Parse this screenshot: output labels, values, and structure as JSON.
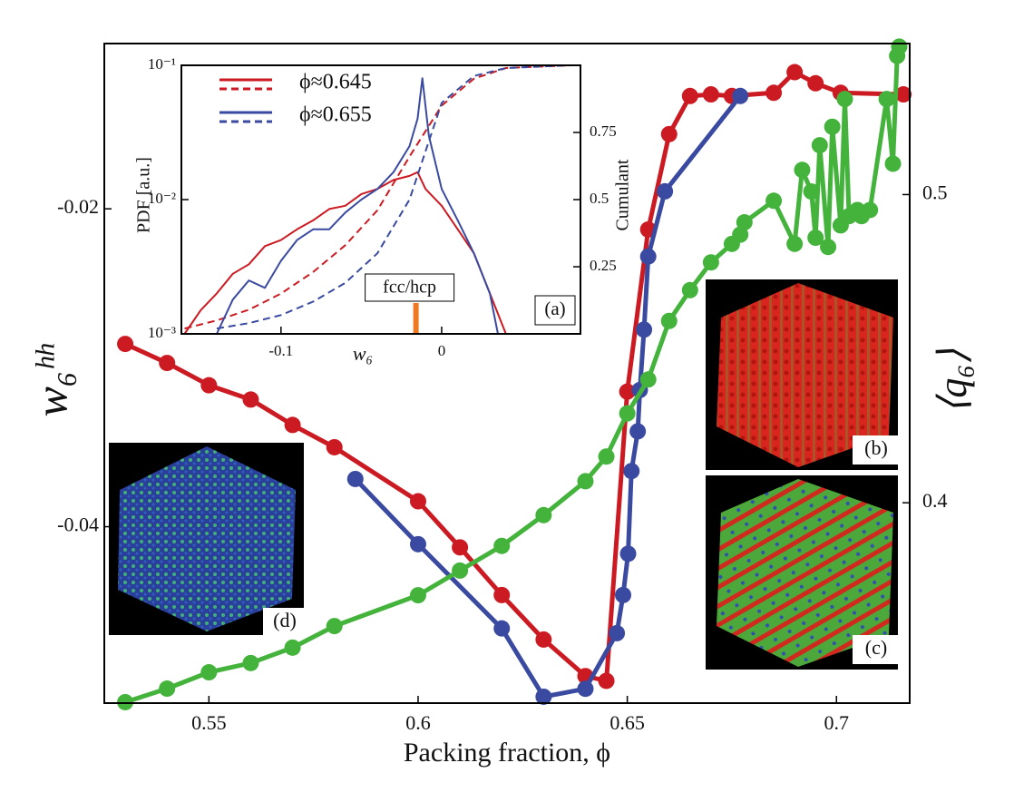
{
  "chart_data": [
    {
      "type": "line",
      "xlabel": "Packing fraction, ϕ",
      "ylabel": "w₆ʰʰ",
      "y2label": "⟨q₆⟩",
      "xlim": [
        0.525,
        0.7175
      ],
      "xticks": [
        0.55,
        0.6,
        0.65,
        0.7
      ],
      "ylim": [
        -0.0511,
        -0.0096
      ],
      "yticks": [
        -0.04,
        -0.02
      ],
      "y2lim": [
        0.335,
        0.549
      ],
      "y2ticks": [
        0.4,
        0.5
      ],
      "markers": true,
      "series": [
        {
          "color": "#cc1a22",
          "axis": "y",
          "x": [
            0.53,
            0.54,
            0.55,
            0.56,
            0.57,
            0.58,
            0.6,
            0.61,
            0.62,
            0.63,
            0.64,
            0.645,
            0.65,
            0.655,
            0.66,
            0.665,
            0.67,
            0.675,
            0.685,
            0.69,
            0.695,
            0.701,
            0.716
          ],
          "values": [
            -0.0285,
            -0.0297,
            -0.0311,
            -0.032,
            -0.0336,
            -0.035,
            -0.0384,
            -0.0413,
            -0.0443,
            -0.0471,
            -0.0494,
            -0.0497,
            -0.0315,
            -0.0213,
            -0.0153,
            -0.0129,
            -0.0128,
            -0.0129,
            -0.0127,
            -0.0114,
            -0.0121,
            -0.0127,
            -0.0128
          ]
        },
        {
          "color": "#3a4aa0",
          "axis": "y",
          "x": [
            0.585,
            0.6,
            0.62,
            0.63,
            0.64,
            0.6475,
            0.649,
            0.6502,
            0.651,
            0.6525,
            0.653,
            0.654,
            0.655,
            0.659,
            0.677
          ],
          "values": [
            -0.037,
            -0.0411,
            -0.0464,
            -0.0507,
            -0.0502,
            -0.0467,
            -0.0443,
            -0.0417,
            -0.0365,
            -0.034,
            -0.0314,
            -0.0276,
            -0.023,
            -0.0189,
            -0.0129
          ]
        },
        {
          "color": "#44b33c",
          "axis": "y2",
          "x": [
            0.53,
            0.54,
            0.55,
            0.56,
            0.57,
            0.58,
            0.6,
            0.61,
            0.62,
            0.63,
            0.64,
            0.645,
            0.65,
            0.655,
            0.66,
            0.665,
            0.67,
            0.675,
            0.677,
            0.678,
            0.685,
            0.69,
            0.6918,
            0.694,
            0.695,
            0.696,
            0.698,
            0.699,
            0.701,
            0.702,
            0.703,
            0.705,
            0.706,
            0.708,
            0.712,
            0.7135,
            0.7145,
            0.715
          ],
          "values": [
            0.3353,
            0.3397,
            0.345,
            0.348,
            0.353,
            0.36,
            0.37,
            0.378,
            0.386,
            0.396,
            0.407,
            0.415,
            0.429,
            0.44,
            0.459,
            0.469,
            0.478,
            0.484,
            0.487,
            0.491,
            0.498,
            0.484,
            0.508,
            0.501,
            0.486,
            0.516,
            0.483,
            0.522,
            0.49,
            0.531,
            0.493,
            0.495,
            0.493,
            0.495,
            0.531,
            0.51,
            0.545,
            0.548
          ]
        }
      ],
      "images": [
        {
          "label": "(b)"
        },
        {
          "label": "(c)"
        },
        {
          "label": "(d)"
        }
      ]
    },
    {
      "type": "line",
      "panel_label": "(a)",
      "xlabel": "w₆",
      "ylabel": "PDF [a.u.]",
      "y2label": "Cumulant",
      "xlim": [
        -0.162,
        0.0864
      ],
      "xticks": [
        -0.1,
        0
      ],
      "ylim": [
        0.001,
        0.1
      ],
      "ylog": true,
      "yticks": [
        {
          "value": 0.001,
          "label": "10⁻³"
        },
        {
          "value": 0.01,
          "label": "10⁻²"
        },
        {
          "value": 0.1,
          "label": "10⁻¹"
        }
      ],
      "y2lim": [
        0,
        1
      ],
      "y2ticks": [
        0.25,
        0.5,
        0.75
      ],
      "markers": false,
      "annotation": {
        "text": "fcc/hcp",
        "x": -0.016,
        "color": "#f07820"
      },
      "series": [
        {
          "name": "ϕ≈0.645",
          "color": "#cc1a22",
          "axis": "y",
          "style": "solid",
          "x": [
            -0.16,
            -0.15,
            -0.14,
            -0.13,
            -0.12,
            -0.11,
            -0.1,
            -0.09,
            -0.08,
            -0.07,
            -0.06,
            -0.05,
            -0.04,
            -0.03,
            -0.02,
            -0.015,
            -0.01,
            0,
            0.01,
            0.02,
            0.03,
            0.04
          ],
          "values": [
            0.001,
            0.0015,
            0.002,
            0.0028,
            0.0033,
            0.0045,
            0.005,
            0.006,
            0.007,
            0.0085,
            0.009,
            0.011,
            0.012,
            0.014,
            0.015,
            0.016,
            0.012,
            0.009,
            0.006,
            0.004,
            0.002,
            0.001
          ]
        },
        {
          "color": "#cc1a22",
          "axis": "y2",
          "style": "dashed",
          "x": [
            -0.16,
            -0.14,
            -0.12,
            -0.1,
            -0.08,
            -0.06,
            -0.04,
            -0.02,
            0,
            0.02,
            0.04,
            0.08
          ],
          "values": [
            0.02,
            0.05,
            0.09,
            0.15,
            0.23,
            0.33,
            0.46,
            0.66,
            0.85,
            0.95,
            0.99,
            1.0
          ]
        },
        {
          "name": "ϕ≈0.655",
          "color": "#3a4aa0",
          "axis": "y",
          "style": "solid",
          "x": [
            -0.14,
            -0.13,
            -0.12,
            -0.11,
            -0.1,
            -0.09,
            -0.08,
            -0.07,
            -0.06,
            -0.05,
            -0.04,
            -0.03,
            -0.02,
            -0.015,
            -0.012,
            -0.008,
            0,
            0.01,
            0.02,
            0.03,
            0.035
          ],
          "values": [
            0.001,
            0.0018,
            0.0025,
            0.0022,
            0.0035,
            0.005,
            0.006,
            0.006,
            0.008,
            0.01,
            0.012,
            0.016,
            0.025,
            0.04,
            0.08,
            0.03,
            0.012,
            0.007,
            0.004,
            0.002,
            0.001
          ]
        },
        {
          "color": "#3a4aa0",
          "axis": "y2",
          "style": "dashed",
          "x": [
            -0.14,
            -0.12,
            -0.1,
            -0.08,
            -0.06,
            -0.04,
            -0.02,
            -0.01,
            0,
            0.02,
            0.04,
            0.08
          ],
          "values": [
            0.02,
            0.04,
            0.07,
            0.12,
            0.19,
            0.3,
            0.5,
            0.68,
            0.86,
            0.96,
            0.99,
            1.0
          ]
        }
      ]
    }
  ]
}
